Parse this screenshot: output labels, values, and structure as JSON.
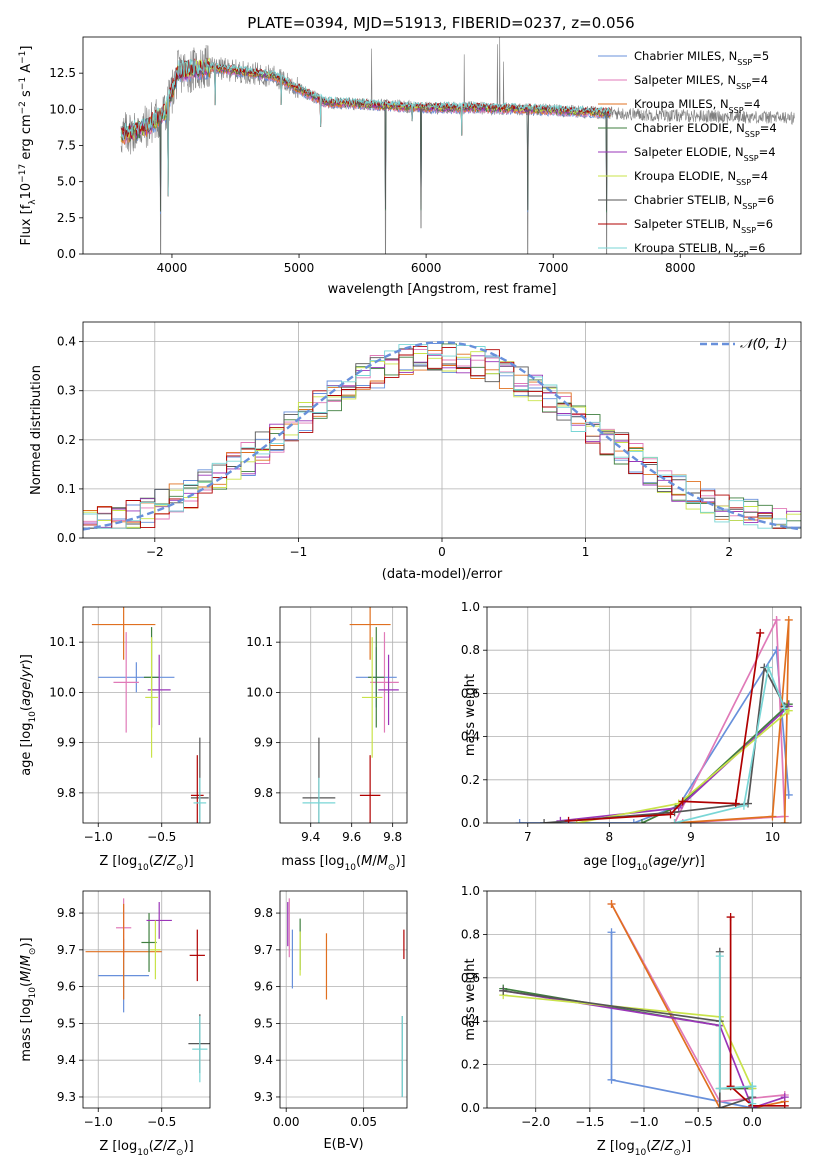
{
  "figure_title": "PLATE=0394, MJD=51913, FIBERID=0237, z=0.056",
  "series": [
    {
      "name": "Chabrier MILES, N_SSP=5",
      "color": "#6890db"
    },
    {
      "name": "Salpeter MILES, N_SSP=4",
      "color": "#e07ab8"
    },
    {
      "name": "Kroupa MILES, N_SSP=4",
      "color": "#e07020"
    },
    {
      "name": "Chabrier ELODIE, N_SSP=4",
      "color": "#3f7f3f"
    },
    {
      "name": "Salpeter ELODIE, N_SSP=4",
      "color": "#9a35b8"
    },
    {
      "name": "Kroupa ELODIE, N_SSP=4",
      "color": "#c9e34a"
    },
    {
      "name": "Chabrier STELIB, N_SSP=6",
      "color": "#555555"
    },
    {
      "name": "Salpeter STELIB, N_SSP=6",
      "color": "#b00000"
    },
    {
      "name": "Kroupa STELIB, N_SSP=6",
      "color": "#79d6d6"
    }
  ],
  "legend_labels": [
    {
      "base": "Chabrier MILES, N",
      "sub": "SSP",
      "tail": "=5"
    },
    {
      "base": "Salpeter MILES, N",
      "sub": "SSP",
      "tail": "=4"
    },
    {
      "base": "Kroupa MILES, N",
      "sub": "SSP",
      "tail": "=4"
    },
    {
      "base": "Chabrier ELODIE, N",
      "sub": "SSP",
      "tail": "=4"
    },
    {
      "base": "Salpeter ELODIE, N",
      "sub": "SSP",
      "tail": "=4"
    },
    {
      "base": "Kroupa ELODIE, N",
      "sub": "SSP",
      "tail": "=4"
    },
    {
      "base": "Chabrier STELIB, N",
      "sub": "SSP",
      "tail": "=6"
    },
    {
      "base": "Salpeter STELIB, N",
      "sub": "SSP",
      "tail": "=6"
    },
    {
      "base": "Kroupa STELIB, N",
      "sub": "SSP",
      "tail": "=6"
    }
  ],
  "chart_data": [
    {
      "id": "spectrum",
      "type": "line",
      "xlabel": "wavelength [Angstrom, rest frame]",
      "ylabel_parts": [
        "Flux [f",
        "λ",
        "10",
        "−17",
        " erg cm",
        "−2",
        " s",
        "−1",
        " A",
        "−1",
        "]"
      ],
      "xlim": [
        3300,
        8950
      ],
      "ylim": [
        0,
        15
      ],
      "xticks": [
        4000,
        5000,
        6000,
        7000,
        8000
      ],
      "yticks": [
        0.0,
        2.5,
        5.0,
        7.5,
        10.0,
        12.5
      ],
      "ytick_labels": [
        "0.0",
        "2.5",
        "5.0",
        "7.5",
        "10.0",
        "12.5"
      ],
      "grid": false,
      "legend_location": "right",
      "continuum": [
        [
          3600,
          8.2
        ],
        [
          3800,
          8.8
        ],
        [
          3950,
          9.8
        ],
        [
          4050,
          12.6
        ],
        [
          4300,
          12.9
        ],
        [
          4800,
          12.3
        ],
        [
          5200,
          10.5
        ],
        [
          5600,
          10.3
        ],
        [
          6000,
          10.1
        ],
        [
          6400,
          10.1
        ],
        [
          6800,
          10.0
        ],
        [
          7300,
          9.8
        ],
        [
          7800,
          9.6
        ],
        [
          8400,
          9.5
        ],
        [
          8900,
          9.4
        ]
      ],
      "model_wavelength_range": [
        3600,
        7450
      ],
      "data_wavelength_range": [
        3600,
        8900
      ],
      "absorption_features": [
        {
          "x": 3910,
          "min": 0.0
        },
        {
          "x": 3970,
          "min": 4.0
        },
        {
          "x": 4340,
          "min": 10.3
        },
        {
          "x": 4860,
          "min": 10.3
        },
        {
          "x": 5170,
          "min": 8.8
        },
        {
          "x": 5680,
          "min": 0.0
        },
        {
          "x": 5890,
          "min": 9.2
        },
        {
          "x": 5960,
          "min": 1.8
        },
        {
          "x": 6280,
          "min": 8.2
        },
        {
          "x": 6800,
          "min": 0.0
        },
        {
          "x": 7420,
          "min": 0.0
        }
      ],
      "emission_spikes": [
        {
          "x": 5570,
          "max": 14.2
        },
        {
          "x": 6300,
          "max": 13.8
        },
        {
          "x": 6560,
          "max": 14.5
        },
        {
          "x": 6580,
          "max": 15.0
        },
        {
          "x": 6610,
          "max": 13.3
        }
      ]
    },
    {
      "id": "residuals",
      "type": "histogram",
      "xlabel": "(data-model)/error",
      "ylabel": "Normed distribution",
      "xlim": [
        -2.5,
        2.5
      ],
      "ylim": [
        0,
        0.44
      ],
      "xticks": [
        -2,
        -1,
        0,
        1,
        2
      ],
      "xtick_labels": [
        "−2",
        "−1",
        "0",
        "1",
        "2"
      ],
      "yticks": [
        0.0,
        0.1,
        0.2,
        0.3,
        0.4
      ],
      "ytick_labels": [
        "0.0",
        "0.1",
        "0.2",
        "0.3",
        "0.4"
      ],
      "grid": true,
      "bin_width": 0.1,
      "reference_curve": {
        "name": "N(0,1)",
        "mean": 0,
        "sigma": 1,
        "color": "#6890db",
        "style": "dashed"
      },
      "reference_label": "𝒩(0, 1)",
      "legend_location": "top-right"
    },
    {
      "id": "age-vs-z",
      "type": "scatter",
      "xlabel": "Z [log10(Z/Z⊙)]",
      "ylabel": "age  [log10(age/yr)]",
      "xlim": [
        -1.12,
        -0.12
      ],
      "ylim": [
        9.74,
        10.17
      ],
      "xticks": [
        -1.0,
        -0.5
      ],
      "xtick_labels": [
        "−1.0",
        "−0.5"
      ],
      "yticks": [
        9.8,
        9.9,
        10.0,
        10.1
      ],
      "ytick_labels": [
        "9.8",
        "9.9",
        "10.0",
        "10.1"
      ],
      "grid": true,
      "points": [
        {
          "s": 0,
          "x": -0.7,
          "y": 10.03,
          "xerr": 0.3,
          "yerr": 0.03
        },
        {
          "s": 1,
          "x": -0.78,
          "y": 10.02,
          "xerr": 0.1,
          "yerr": 0.1
        },
        {
          "s": 2,
          "x": -0.8,
          "y": 10.135,
          "xerr": 0.25,
          "yerr": 0.07
        },
        {
          "s": 3,
          "x": -0.58,
          "y": 10.03,
          "xerr": 0.06,
          "yerr": 0.1
        },
        {
          "s": 4,
          "x": -0.52,
          "y": 10.005,
          "xerr": 0.09,
          "yerr": 0.07
        },
        {
          "s": 5,
          "x": -0.58,
          "y": 9.99,
          "xerr": 0.05,
          "yerr": 0.12
        },
        {
          "s": 6,
          "x": -0.2,
          "y": 9.79,
          "xerr": 0.07,
          "yerr": 0.12
        },
        {
          "s": 7,
          "x": -0.22,
          "y": 9.795,
          "xerr": 0.05,
          "yerr": 0.08
        },
        {
          "s": 8,
          "x": -0.2,
          "y": 9.78,
          "xerr": 0.05,
          "yerr": 0.05
        }
      ]
    },
    {
      "id": "age-vs-mass",
      "type": "scatter",
      "xlabel": "mass [log10(M/M⊙)]",
      "ylabel": "",
      "xlim": [
        9.25,
        9.87
      ],
      "ylim": [
        9.74,
        10.17
      ],
      "xticks": [
        9.4,
        9.6,
        9.8
      ],
      "xtick_labels": [
        "9.4",
        "9.6",
        "9.8"
      ],
      "yticks": [
        9.8,
        9.9,
        10.0,
        10.1
      ],
      "ytick_labels": [
        "9.8",
        "9.9",
        "10.0",
        "10.1"
      ],
      "grid": true,
      "points": [
        {
          "s": 0,
          "x": 9.72,
          "y": 10.03,
          "xerr": 0.1,
          "yerr": 0.06
        },
        {
          "s": 1,
          "x": 9.76,
          "y": 10.02,
          "xerr": 0.07,
          "yerr": 0.1
        },
        {
          "s": 2,
          "x": 9.69,
          "y": 10.135,
          "xerr": 0.1,
          "yerr": 0.07
        },
        {
          "s": 3,
          "x": 9.72,
          "y": 10.03,
          "xerr": 0.04,
          "yerr": 0.1
        },
        {
          "s": 4,
          "x": 9.78,
          "y": 10.005,
          "xerr": 0.05,
          "yerr": 0.07
        },
        {
          "s": 5,
          "x": 9.7,
          "y": 9.99,
          "xerr": 0.05,
          "yerr": 0.12
        },
        {
          "s": 6,
          "x": 9.44,
          "y": 9.79,
          "xerr": 0.08,
          "yerr": 0.12
        },
        {
          "s": 7,
          "x": 9.69,
          "y": 9.795,
          "xerr": 0.05,
          "yerr": 0.08
        },
        {
          "s": 8,
          "x": 9.44,
          "y": 9.78,
          "xerr": 0.08,
          "yerr": 0.05
        }
      ]
    },
    {
      "id": "weight-vs-age",
      "type": "line",
      "xlabel": "age  [log10(age/yr)]",
      "ylabel": "mass weight",
      "xlim": [
        6.5,
        10.35
      ],
      "ylim": [
        0,
        1
      ],
      "xticks": [
        7,
        8,
        9,
        10
      ],
      "xtick_labels": [
        "7",
        "8",
        "9",
        "10"
      ],
      "yticks": [
        0.0,
        0.2,
        0.4,
        0.6,
        0.8,
        1.0
      ],
      "ytick_labels": [
        "0.0",
        "0.2",
        "0.4",
        "0.6",
        "0.8",
        "1.0"
      ],
      "grid": true,
      "lines": [
        {
          "s": 0,
          "points": [
            [
              6.9,
              0.0
            ],
            [
              8.3,
              0.0
            ],
            [
              8.85,
              0.08
            ],
            [
              10.05,
              0.8
            ],
            [
              10.2,
              0.13
            ]
          ]
        },
        {
          "s": 1,
          "points": [
            [
              8.8,
              0.0
            ],
            [
              10.05,
              0.94
            ],
            [
              10.15,
              0.03
            ],
            [
              8.9,
              0.0
            ]
          ]
        },
        {
          "s": 2,
          "points": [
            [
              8.8,
              0.0
            ],
            [
              10.0,
              0.03
            ],
            [
              10.2,
              0.94
            ],
            [
              10.15,
              0.0
            ]
          ]
        },
        {
          "s": 3,
          "points": [
            [
              8.4,
              0.0
            ],
            [
              8.85,
              0.08
            ],
            [
              10.2,
              0.55
            ]
          ]
        },
        {
          "s": 4,
          "points": [
            [
              7.4,
              0.01
            ],
            [
              8.85,
              0.07
            ],
            [
              10.2,
              0.54
            ]
          ]
        },
        {
          "s": 5,
          "points": [
            [
              7.6,
              0.0
            ],
            [
              8.85,
              0.09
            ],
            [
              10.2,
              0.52
            ]
          ]
        },
        {
          "s": 6,
          "points": [
            [
              7.2,
              0.0
            ],
            [
              8.8,
              0.05
            ],
            [
              9.7,
              0.09
            ],
            [
              9.9,
              0.72
            ],
            [
              10.15,
              0.54
            ]
          ]
        },
        {
          "s": 7,
          "points": [
            [
              7.5,
              0.01
            ],
            [
              8.75,
              0.04
            ],
            [
              8.9,
              0.1
            ],
            [
              9.55,
              0.09
            ],
            [
              9.85,
              0.88
            ]
          ]
        },
        {
          "s": 8,
          "points": [
            [
              8.8,
              0.0
            ],
            [
              9.65,
              0.08
            ],
            [
              9.95,
              0.72
            ],
            [
              10.15,
              0.53
            ]
          ]
        }
      ]
    },
    {
      "id": "mass-vs-z",
      "type": "scatter",
      "xlabel": "Z [log10(Z/Z⊙)]",
      "ylabel": "mass [log10(M/M⊙)]",
      "xlim": [
        -1.12,
        -0.12
      ],
      "ylim": [
        9.27,
        9.86
      ],
      "xticks": [
        -1.0,
        -0.5
      ],
      "xtick_labels": [
        "−1.0",
        "−0.5"
      ],
      "yticks": [
        9.3,
        9.4,
        9.5,
        9.6,
        9.7,
        9.8
      ],
      "ytick_labels": [
        "9.3",
        "9.4",
        "9.5",
        "9.6",
        "9.7",
        "9.8"
      ],
      "grid": true,
      "points": [
        {
          "s": 0,
          "x": -0.8,
          "y": 9.63,
          "xerr": 0.2,
          "yerr": 0.1
        },
        {
          "s": 1,
          "x": -0.8,
          "y": 9.76,
          "xerr": 0.06,
          "yerr": 0.08
        },
        {
          "s": 2,
          "x": -0.8,
          "y": 9.695,
          "xerr": 0.3,
          "yerr": 0.13
        },
        {
          "s": 3,
          "x": -0.6,
          "y": 9.72,
          "xerr": 0.06,
          "yerr": 0.08
        },
        {
          "s": 4,
          "x": -0.52,
          "y": 9.78,
          "xerr": 0.1,
          "yerr": 0.05
        },
        {
          "s": 5,
          "x": -0.55,
          "y": 9.7,
          "xerr": 0.04,
          "yerr": 0.08
        },
        {
          "s": 6,
          "x": -0.2,
          "y": 9.445,
          "xerr": 0.09,
          "yerr": 0.08
        },
        {
          "s": 7,
          "x": -0.22,
          "y": 9.685,
          "xerr": 0.06,
          "yerr": 0.07
        },
        {
          "s": 8,
          "x": -0.2,
          "y": 9.43,
          "xerr": 0.06,
          "yerr": 0.09
        }
      ]
    },
    {
      "id": "mass-vs-ebv",
      "type": "scatter",
      "xlabel": "E(B-V)",
      "ylabel": "",
      "xlim": [
        -0.004,
        0.078
      ],
      "ylim": [
        9.27,
        9.86
      ],
      "xticks": [
        0.0,
        0.05
      ],
      "xtick_labels": [
        "0.00",
        "0.05"
      ],
      "yticks": [
        9.3,
        9.4,
        9.5,
        9.6,
        9.7,
        9.8
      ],
      "ytick_labels": [
        "9.3",
        "9.4",
        "9.5",
        "9.6",
        "9.7",
        "9.8"
      ],
      "grid": true,
      "points": [
        {
          "s": 0,
          "x": 0.004,
          "y": 9.675,
          "xerr": 0,
          "yerr": 0.08
        },
        {
          "s": 1,
          "x": 0.002,
          "y": 9.76,
          "xerr": 0,
          "yerr": 0.08
        },
        {
          "s": 2,
          "x": 0.026,
          "y": 9.655,
          "xerr": 0,
          "yerr": 0.09
        },
        {
          "s": 3,
          "x": 0.009,
          "y": 9.715,
          "xerr": 0,
          "yerr": 0.07
        },
        {
          "s": 4,
          "x": 0.001,
          "y": 9.77,
          "xerr": 0,
          "yerr": 0.06
        },
        {
          "s": 5,
          "x": 0.009,
          "y": 9.69,
          "xerr": 0,
          "yerr": 0.06
        },
        {
          "s": 6,
          "x": 0.075,
          "y": 9.41,
          "xerr": 0,
          "yerr": 0.11
        },
        {
          "s": 7,
          "x": 0.076,
          "y": 9.715,
          "xerr": 0,
          "yerr": 0.04
        },
        {
          "s": 8,
          "x": 0.075,
          "y": 9.41,
          "xerr": 0,
          "yerr": 0.11
        }
      ]
    },
    {
      "id": "weight-vs-z",
      "type": "line",
      "xlabel": "Z [log10(Z/Z⊙)]",
      "ylabel": "mass weight",
      "xlim": [
        -2.45,
        0.45
      ],
      "ylim": [
        0,
        1
      ],
      "xticks": [
        -2.0,
        -1.5,
        -1.0,
        -0.5,
        0.0
      ],
      "xtick_labels": [
        "−2.0",
        "−1.5",
        "−1.0",
        "−0.5",
        "0.0"
      ],
      "yticks": [
        0.0,
        0.2,
        0.4,
        0.6,
        0.8,
        1.0
      ],
      "ytick_labels": [
        "0.0",
        "0.2",
        "0.4",
        "0.6",
        "0.8",
        "1.0"
      ],
      "grid": true,
      "lines": [
        {
          "s": 0,
          "points": [
            [
              -1.3,
              0.81
            ],
            [
              -1.3,
              0.13
            ],
            [
              -0.3,
              0.03
            ],
            [
              0.0,
              0.0
            ],
            [
              0.0,
              0.1
            ]
          ]
        },
        {
          "s": 1,
          "points": [
            [
              -1.3,
              0.94
            ],
            [
              -0.3,
              0.03
            ],
            [
              0.3,
              0.06
            ]
          ]
        },
        {
          "s": 2,
          "points": [
            [
              -1.3,
              0.94
            ],
            [
              -0.3,
              0.0
            ],
            [
              0.0,
              0.0
            ],
            [
              0.3,
              0.03
            ]
          ]
        },
        {
          "s": 3,
          "points": [
            [
              -2.3,
              0.55
            ],
            [
              -0.3,
              0.38
            ],
            [
              -0.3,
              0.09
            ],
            [
              0.0,
              0.09
            ]
          ]
        },
        {
          "s": 4,
          "points": [
            [
              -2.3,
              0.54
            ],
            [
              -0.3,
              0.38
            ],
            [
              0.0,
              0.0
            ],
            [
              0.3,
              0.05
            ]
          ]
        },
        {
          "s": 5,
          "points": [
            [
              -2.3,
              0.52
            ],
            [
              -0.3,
              0.42
            ],
            [
              0.0,
              0.09
            ]
          ]
        },
        {
          "s": 6,
          "points": [
            [
              -2.3,
              0.54
            ],
            [
              -0.3,
              0.4
            ],
            [
              -0.3,
              0.72
            ],
            [
              -0.3,
              0.0
            ],
            [
              0.0,
              0.05
            ]
          ]
        },
        {
          "s": 7,
          "points": [
            [
              -0.2,
              0.88
            ],
            [
              -0.2,
              0.1
            ],
            [
              0.0,
              0.01
            ],
            [
              0.3,
              0.01
            ]
          ]
        },
        {
          "s": 8,
          "points": [
            [
              -0.3,
              0.7
            ],
            [
              -0.3,
              0.09
            ],
            [
              0.0,
              0.1
            ],
            [
              0.0,
              0.02
            ]
          ]
        }
      ]
    }
  ]
}
